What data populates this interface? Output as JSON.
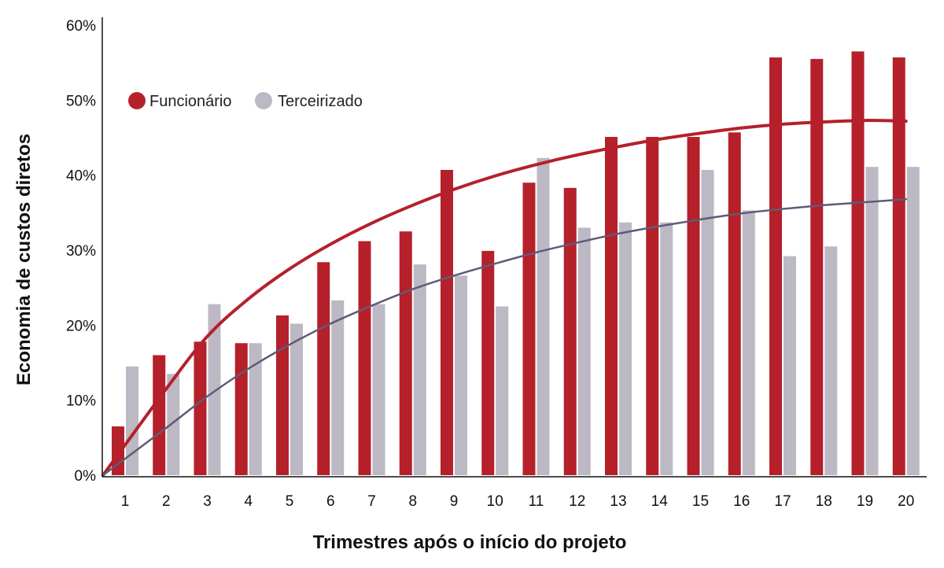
{
  "chart_data": {
    "type": "bar",
    "xlabel": "Trimestres após o início do projeto",
    "ylabel": "Economia de custos diretos",
    "ylim": [
      0,
      60
    ],
    "yticks": [
      "0%",
      "10%",
      "20%",
      "30%",
      "40%",
      "50%",
      "60%"
    ],
    "ytick_values": [
      0,
      10,
      20,
      30,
      40,
      50,
      60
    ],
    "categories": [
      "1",
      "2",
      "3",
      "4",
      "5",
      "6",
      "7",
      "8",
      "9",
      "10",
      "11",
      "12",
      "13",
      "14",
      "15",
      "16",
      "17",
      "18",
      "19",
      "20"
    ],
    "legend_position": "top-left",
    "grid": false,
    "series": [
      {
        "name": "Funcionário",
        "color": "#b5202a",
        "values": [
          6.5,
          16,
          17.8,
          17.6,
          21.3,
          28.4,
          31.2,
          32.5,
          40.7,
          29.9,
          39,
          38.3,
          45.1,
          45.1,
          45.1,
          45.7,
          55.7,
          55.5,
          56.5,
          55.7
        ],
        "trend": [
          0,
          11.5,
          18.5,
          23.5,
          27.5,
          30.8,
          33.6,
          36,
          38.1,
          39.9,
          41.4,
          42.7,
          43.8,
          44.8,
          45.6,
          46.3,
          46.8,
          47.1,
          47.3,
          47.2
        ]
      },
      {
        "name": "Terceirizado",
        "color": "#bcb8c4",
        "values": [
          14.5,
          13.5,
          22.8,
          17.6,
          20.2,
          23.3,
          22.8,
          28.1,
          26.6,
          22.5,
          42.3,
          33,
          33.7,
          33.7,
          40.7,
          35.3,
          29.2,
          30.5,
          41.1,
          41.1
        ],
        "trend": [
          0,
          6.3,
          10.5,
          14.2,
          17.4,
          20.2,
          22.6,
          24.8,
          26.6,
          28.2,
          29.7,
          31,
          32.2,
          33.2,
          34.1,
          34.9,
          35.5,
          36,
          36.4,
          36.8
        ],
        "trend_color": "#5f5a78"
      }
    ]
  }
}
